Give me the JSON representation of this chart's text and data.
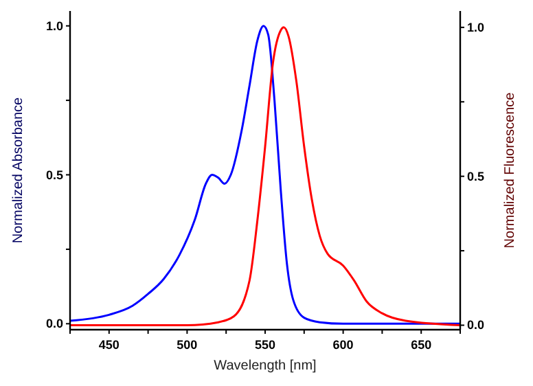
{
  "chart_data": {
    "type": "line",
    "xlabel": "Wavelength [nm]",
    "ylabel": "Normalized Absorbance",
    "y2label": "Normalized Fluorescence",
    "xlim": [
      425,
      675
    ],
    "xticks": [
      {
        "value": 425,
        "label": null
      },
      450,
      {
        "value": 475,
        "label": null
      },
      500,
      {
        "value": 525,
        "label": null
      },
      550,
      {
        "value": 575,
        "label": null
      },
      600,
      {
        "value": 625,
        "label": null
      },
      650,
      {
        "value": 675,
        "label": null
      }
    ],
    "ylim": [
      -0.02,
      1.05
    ],
    "yticks": [
      "0.0",
      {
        "value": 0.25,
        "label": null
      },
      {
        "value": 0.5,
        "label": "0.5"
      },
      {
        "value": 0.75,
        "label": null
      },
      {
        "value": 1,
        "label": "1.0"
      }
    ],
    "y2lim": [
      -0.015,
      1.055
    ],
    "y2ticks": [
      {
        "value": 0,
        "label": "0.0"
      },
      {
        "value": 0.25,
        "label": null
      },
      {
        "value": 0.5,
        "label": "0.5"
      },
      {
        "value": 0.75,
        "label": null
      },
      {
        "value": 1,
        "label": "1.0"
      }
    ],
    "grid": false,
    "marker": "none",
    "line_style": "solid",
    "series": [
      {
        "color": "#0000ff",
        "x": [
          425,
          450,
          465,
          475,
          485,
          495,
          505,
          512,
          516,
          520,
          524,
          528,
          535,
          540,
          545,
          549,
          552,
          556,
          560,
          564,
          568,
          575,
          585,
          600,
          675
        ],
        "values": [
          0.01,
          0.03,
          0.06,
          0.1,
          0.15,
          0.23,
          0.35,
          0.47,
          0.5,
          0.49,
          0.47,
          0.5,
          0.65,
          0.8,
          0.95,
          1.0,
          0.97,
          0.75,
          0.45,
          0.2,
          0.08,
          0.02,
          0.005,
          0,
          0
        ]
      },
      {
        "color": "#ff0000",
        "axis": "y2",
        "x": [
          425,
          500,
          520,
          530,
          540,
          545,
          550,
          555,
          560,
          562,
          565,
          570,
          575,
          580,
          585,
          590,
          600,
          607,
          615,
          625,
          640,
          675
        ],
        "values": [
          0,
          0,
          0.01,
          0.03,
          0.15,
          0.35,
          0.6,
          0.88,
          0.99,
          1.0,
          0.97,
          0.82,
          0.6,
          0.42,
          0.3,
          0.24,
          0.2,
          0.15,
          0.08,
          0.04,
          0.015,
          0
        ]
      }
    ]
  }
}
